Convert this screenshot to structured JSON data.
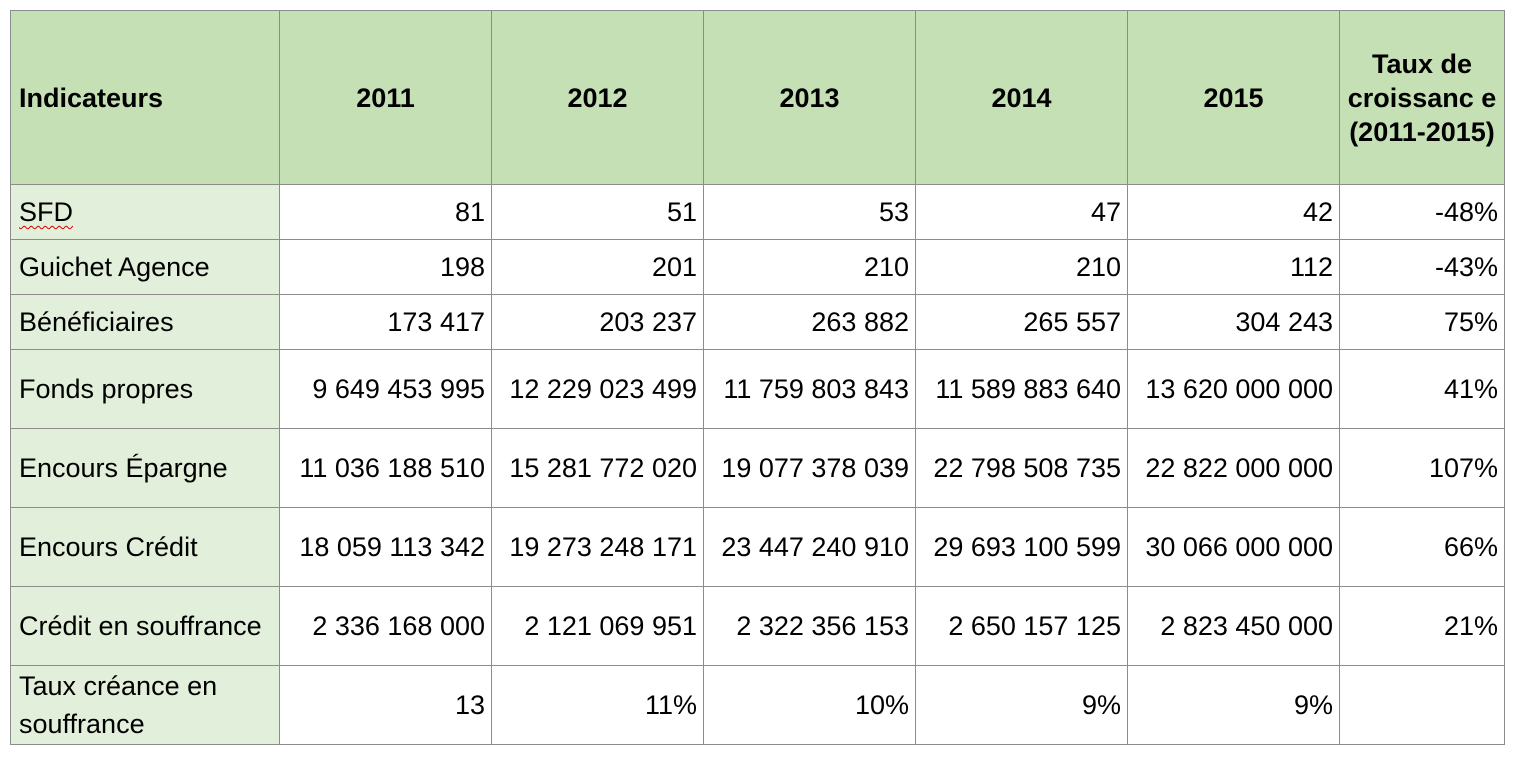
{
  "table": {
    "headers": [
      "Indicateurs",
      "2011",
      "2012",
      "2013",
      "2014",
      "2015",
      "Taux de croissanc e (2011-2015)"
    ],
    "rows": [
      {
        "label": "SFD",
        "values": [
          "81",
          "51",
          "53",
          "47",
          "42",
          "-48%"
        ]
      },
      {
        "label": "Guichet Agence",
        "values": [
          "198",
          "201",
          "210",
          "210",
          "112",
          "-43%"
        ]
      },
      {
        "label": "Bénéficiaires",
        "values": [
          "173 417",
          "203 237",
          "263 882",
          "265 557",
          "304 243",
          "75%"
        ]
      },
      {
        "label": "Fonds propres",
        "values": [
          "9 649 453 995",
          "12 229 023 499",
          "11 759 803 843",
          "11 589 883 640",
          "13 620 000 000",
          "41%"
        ]
      },
      {
        "label": "Encours Épargne",
        "values": [
          "11 036 188 510",
          "15 281 772 020",
          "19 077 378 039",
          "22 798 508 735",
          "22 822 000 000",
          "107%"
        ]
      },
      {
        "label": "Encours Crédit",
        "values": [
          "18 059 113 342",
          "19 273 248 171",
          "23 447 240 910",
          "29 693 100 599",
          "30 066 000 000",
          "66%"
        ]
      },
      {
        "label": "Crédit en souffrance",
        "values": [
          "2 336 168 000",
          "2 121 069 951",
          "2 322 356 153",
          "2 650 157 125",
          "2 823 450 000",
          "21%"
        ]
      },
      {
        "label": "Taux créance en souffrance",
        "values": [
          "13",
          "11%",
          "10%",
          "9%",
          "9%",
          ""
        ]
      }
    ]
  }
}
